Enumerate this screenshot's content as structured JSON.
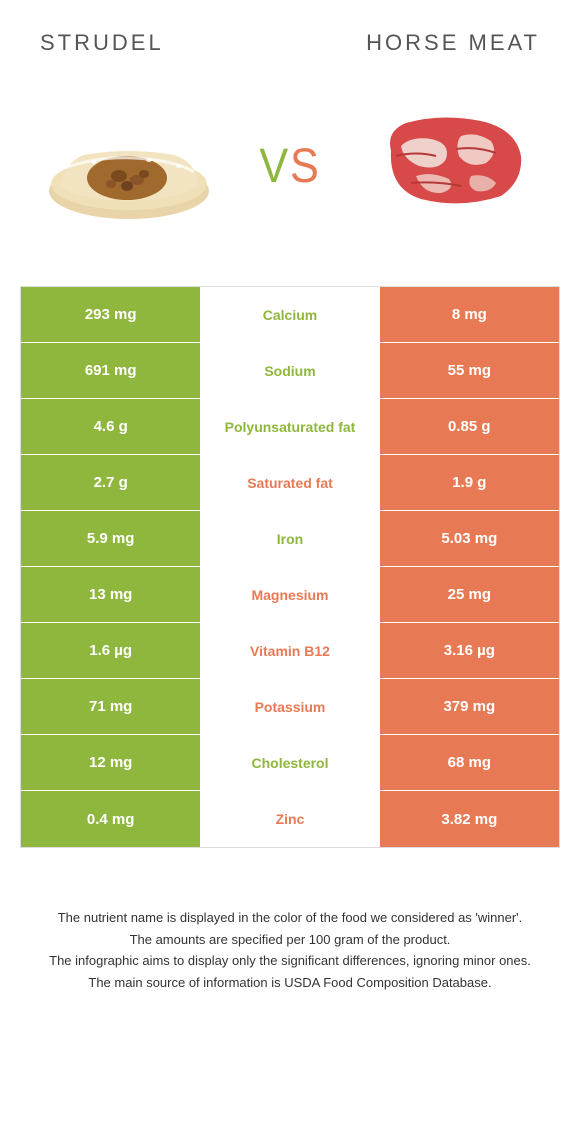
{
  "header": {
    "left_title": "Strudel",
    "right_title": "Horse meat",
    "vs": "VS"
  },
  "colors": {
    "left": "#8fb73e",
    "right": "#e77a54",
    "left_text": "#8fb73e",
    "right_text": "#e77a54"
  },
  "rows": [
    {
      "left": "293 mg",
      "name": "Calcium",
      "right": "8 mg",
      "winner": "left"
    },
    {
      "left": "691 mg",
      "name": "Sodium",
      "right": "55 mg",
      "winner": "left"
    },
    {
      "left": "4.6 g",
      "name": "Polyunsaturated fat",
      "right": "0.85 g",
      "winner": "left"
    },
    {
      "left": "2.7 g",
      "name": "Saturated fat",
      "right": "1.9 g",
      "winner": "right"
    },
    {
      "left": "5.9 mg",
      "name": "Iron",
      "right": "5.03 mg",
      "winner": "left"
    },
    {
      "left": "13 mg",
      "name": "Magnesium",
      "right": "25 mg",
      "winner": "right"
    },
    {
      "left": "1.6 µg",
      "name": "Vitamin B12",
      "right": "3.16 µg",
      "winner": "right"
    },
    {
      "left": "71 mg",
      "name": "Potassium",
      "right": "379 mg",
      "winner": "right"
    },
    {
      "left": "12 mg",
      "name": "Cholesterol",
      "right": "68 mg",
      "winner": "left"
    },
    {
      "left": "0.4 mg",
      "name": "Zinc",
      "right": "3.82 mg",
      "winner": "right"
    }
  ],
  "footer": {
    "line1": "The nutrient name is displayed in the color of the food we considered as 'winner'.",
    "line2": "The amounts are specified per 100 gram of the product.",
    "line3": "The infographic aims to display only the significant differences, ignoring minor ones.",
    "line4": "The main source of information is USDA Food Composition Database."
  }
}
